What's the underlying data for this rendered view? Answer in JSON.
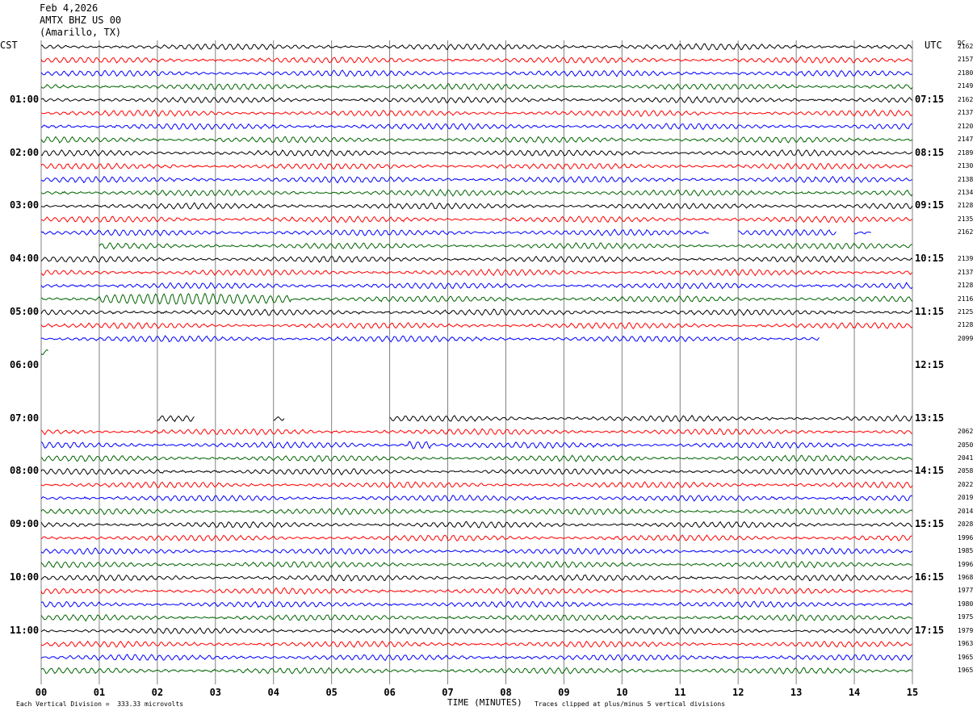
{
  "header": {
    "date": "Feb 4,2026",
    "station": "AMTX BHZ US 00",
    "location": "(Amarillo, TX)"
  },
  "left_axis_label": "CST",
  "right_axis_label": "UTC",
  "dc_label": "DC",
  "footer": {
    "scale_note": "Each Vertical Division =  333.33 microvolts",
    "clip_note": "Traces clipped at plus/minus 5 vertical divisions",
    "xaxis_title": "TIME (MINUTES)"
  },
  "colors": {
    "trace_cycle": [
      "#000000",
      "#ff0000",
      "#0000ff",
      "#006400"
    ],
    "grid": "#808080"
  },
  "chart_data": {
    "type": "line",
    "title": "AMTX BHZ US 00 (Amarillo, TX) Feb 4,2026",
    "xlabel": "TIME (MINUTES)",
    "xlim": [
      0,
      15
    ],
    "x_ticks": [
      "00",
      "01",
      "02",
      "03",
      "04",
      "05",
      "06",
      "07",
      "08",
      "09",
      "10",
      "11",
      "12",
      "13",
      "14",
      "15"
    ],
    "trace_interval_minutes": 15,
    "cst_hour_labels": [
      "01:00",
      "02:00",
      "03:00",
      "04:00",
      "05:00",
      "06:00",
      "07:00",
      "08:00",
      "09:00",
      "10:00",
      "11:00"
    ],
    "utc_hour_labels": [
      "07:15",
      "08:15",
      "09:15",
      "10:15",
      "11:15",
      "12:15",
      "13:15",
      "14:15",
      "15:15",
      "16:15",
      "17:15"
    ],
    "dc_offsets": [
      "2162",
      "2157",
      "2180",
      "2149",
      "2162",
      "2137",
      "2120",
      "2147",
      "2189",
      "2130",
      "2138",
      "2134",
      "2128",
      "2135",
      "2162",
      "",
      "2139",
      "2137",
      "2128",
      "2116",
      "2125",
      "2128",
      "2099",
      "",
      "",
      "",
      "",
      "",
      "",
      "2062",
      "2050",
      "2041",
      "2058",
      "2022",
      "2019",
      "2014",
      "2028",
      "1996",
      "1985",
      "1996",
      "1968",
      "1977",
      "1980",
      "1975",
      "1979",
      "1963",
      "1965",
      "1965"
    ],
    "trace_segments_minutes": [
      [
        [
          0,
          15
        ]
      ],
      [
        [
          0,
          15
        ]
      ],
      [
        [
          0,
          15
        ]
      ],
      [
        [
          0,
          15
        ]
      ],
      [
        [
          0,
          15
        ]
      ],
      [
        [
          0,
          15
        ]
      ],
      [
        [
          0,
          15
        ]
      ],
      [
        [
          0,
          15
        ]
      ],
      [
        [
          0,
          15
        ]
      ],
      [
        [
          0,
          15
        ]
      ],
      [
        [
          0,
          15
        ]
      ],
      [
        [
          0,
          15
        ]
      ],
      [
        [
          0,
          15
        ]
      ],
      [
        [
          0,
          15
        ]
      ],
      [
        [
          0,
          11.5
        ],
        [
          12,
          13.7
        ],
        [
          14,
          14.3
        ]
      ],
      [
        [
          1,
          15
        ]
      ],
      [
        [
          0,
          15
        ]
      ],
      [
        [
          0,
          15
        ]
      ],
      [
        [
          0,
          15
        ]
      ],
      [
        [
          0,
          15
        ]
      ],
      [
        [
          0,
          15
        ]
      ],
      [
        [
          0,
          15
        ]
      ],
      [
        [
          0,
          13.4
        ]
      ],
      [
        [
          0,
          0.12
        ]
      ],
      [],
      [],
      [],
      [],
      [
        [
          2,
          2.65
        ],
        [
          4,
          4.2
        ],
        [
          6,
          15
        ]
      ],
      [
        [
          0,
          15
        ]
      ],
      [
        [
          0,
          15
        ]
      ],
      [
        [
          0,
          15
        ]
      ],
      [
        [
          0,
          15
        ]
      ],
      [
        [
          0,
          15
        ]
      ],
      [
        [
          0,
          15
        ]
      ],
      [
        [
          0,
          15
        ]
      ],
      [
        [
          0,
          15
        ]
      ],
      [
        [
          0,
          15
        ]
      ],
      [
        [
          0,
          15
        ]
      ],
      [
        [
          0,
          15
        ]
      ],
      [
        [
          0,
          15
        ]
      ],
      [
        [
          0,
          15
        ]
      ],
      [
        [
          0,
          15
        ]
      ],
      [
        [
          0,
          15
        ]
      ],
      [
        [
          0,
          15
        ]
      ],
      [
        [
          0,
          15
        ]
      ],
      [
        [
          0,
          15
        ]
      ],
      [
        [
          0,
          15
        ]
      ]
    ],
    "events": [
      {
        "row": 19,
        "start_min": 1.0,
        "end_min": 4.3,
        "label": ""
      },
      {
        "row": 30,
        "start_min": 6.3,
        "end_min": 6.7,
        "label": ""
      }
    ]
  }
}
